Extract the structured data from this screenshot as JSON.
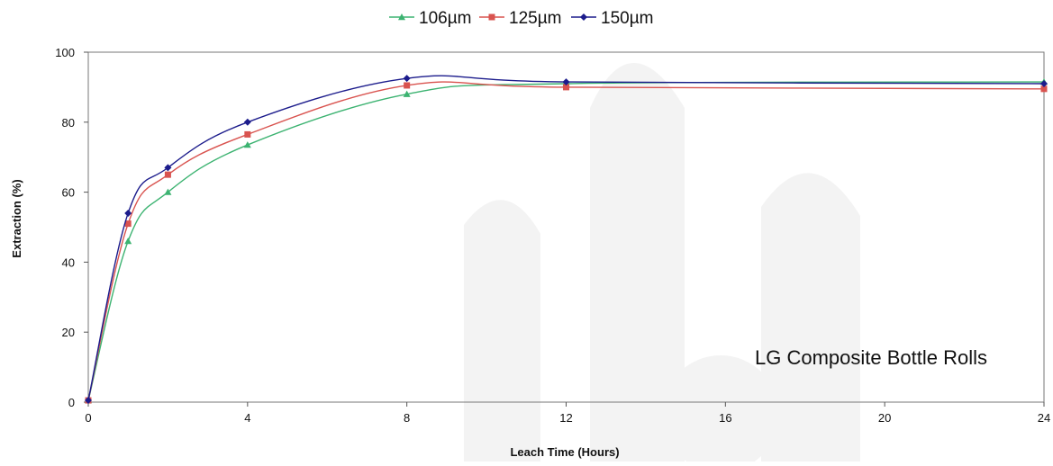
{
  "chart_data": {
    "type": "line",
    "xlabel": "Leach Time (Hours)",
    "ylabel": "Extraction (%)",
    "xlim": [
      0,
      24
    ],
    "ylim": [
      0,
      100
    ],
    "xticks": [
      0,
      4,
      8,
      12,
      16,
      20,
      24
    ],
    "yticks": [
      0,
      20,
      40,
      60,
      80,
      100
    ],
    "grid": false,
    "legend_position": "top-center",
    "annotation": "LG Composite Bottle Rolls",
    "series": [
      {
        "name": "106µm",
        "color": "#3cb371",
        "marker": "triangle",
        "x": [
          0,
          1,
          2,
          4,
          8,
          12,
          24
        ],
        "y": [
          0.5,
          46,
          60,
          73.5,
          88,
          91,
          91.5
        ]
      },
      {
        "name": "125µm",
        "color": "#d9534f",
        "marker": "square",
        "x": [
          0,
          1,
          2,
          4,
          8,
          12,
          24
        ],
        "y": [
          0.5,
          51,
          65,
          76.5,
          90.5,
          90,
          89.5
        ]
      },
      {
        "name": "150µm",
        "color": "#1c1c8c",
        "marker": "diamond",
        "x": [
          0,
          1,
          2,
          4,
          8,
          12,
          24
        ],
        "y": [
          0.5,
          54,
          67,
          80,
          92.5,
          91.5,
          91
        ]
      }
    ]
  }
}
